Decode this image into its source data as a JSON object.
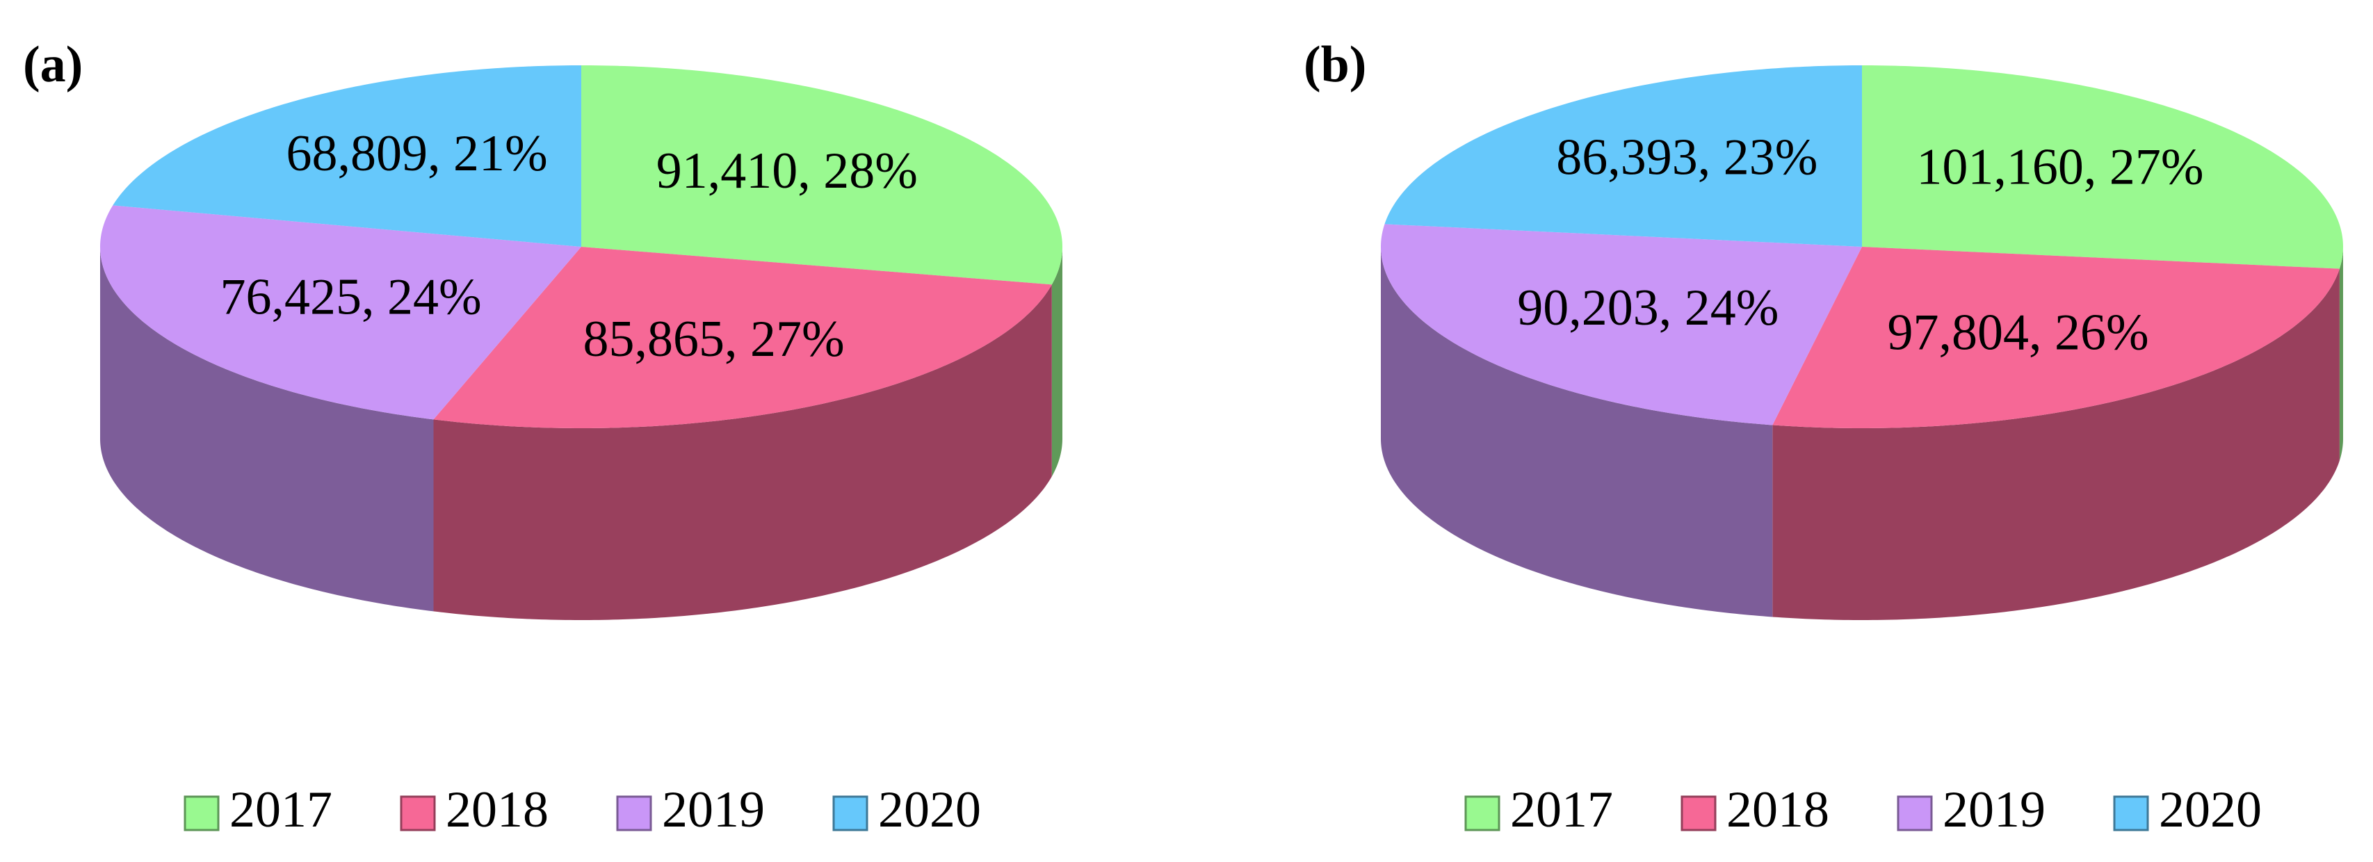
{
  "chart_data": [
    {
      "type": "pie",
      "title": "(a)",
      "categories": [
        "2017",
        "2018",
        "2019",
        "2020"
      ],
      "values": [
        91410,
        85865,
        76425,
        68809
      ],
      "value_labels": [
        "91,410, 28%",
        "85,865, 27%",
        "76,425, 24%",
        "68,809, 21%"
      ],
      "colors": [
        "#99f990",
        "#f66896",
        "#c996f7",
        "#66c8fb"
      ],
      "legend": "bottom"
    },
    {
      "type": "pie",
      "title": "(b)",
      "categories": [
        "2017",
        "2018",
        "2019",
        "2020"
      ],
      "values": [
        101160,
        97804,
        90203,
        86393
      ],
      "value_labels": [
        "101,160, 27%",
        "97,804, 26%",
        "90,203, 24%",
        "86,393, 23%"
      ],
      "colors": [
        "#99f990",
        "#f66896",
        "#c996f7",
        "#66c8fb"
      ],
      "legend": "bottom"
    }
  ]
}
